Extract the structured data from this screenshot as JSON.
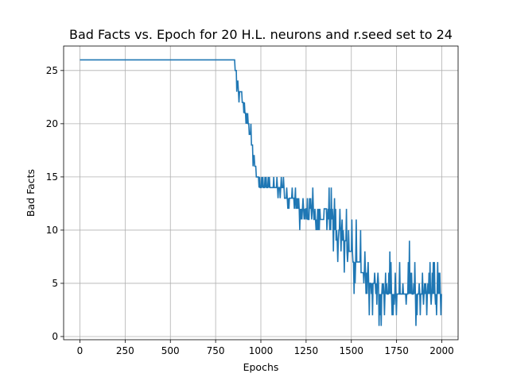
{
  "chart_data": {
    "type": "line",
    "title": "Bad Facts vs. Epoch for 20 H.L. neurons and r.seed set to 24",
    "xlabel": "Epochs",
    "ylabel": "Bad Facts",
    "xlim": [
      -90,
      2090
    ],
    "ylim": [
      -0.3,
      27.3
    ],
    "xticks": [
      0,
      250,
      500,
      750,
      1000,
      1250,
      1500,
      1750,
      2000
    ],
    "yticks": [
      0,
      5,
      10,
      15,
      20,
      25
    ],
    "grid": true,
    "line_color": "#1f77b4",
    "series": [
      {
        "x": [
          0,
          100,
          200,
          300,
          400,
          500,
          600,
          700,
          800,
          850,
          860,
          870,
          880,
          890,
          900,
          910,
          920,
          930,
          940,
          950,
          960,
          970,
          980,
          990,
          1000,
          1020,
          1040,
          1060,
          1080,
          1100,
          1120,
          1140,
          1160,
          1180,
          1200,
          1220,
          1240,
          1260,
          1280,
          1300,
          1320,
          1340,
          1360,
          1380,
          1400,
          1420,
          1440,
          1460,
          1480,
          1500,
          1520,
          1540,
          1560,
          1580,
          1600,
          1620,
          1640,
          1660,
          1680,
          1700,
          1720,
          1740,
          1760,
          1780,
          1800,
          1820,
          1840,
          1860,
          1880,
          1900,
          1920,
          1940,
          1960,
          1980,
          2000
        ],
        "y": [
          26,
          26,
          26,
          26,
          26,
          26,
          26,
          26,
          26,
          26,
          25,
          24,
          23,
          23,
          22,
          21,
          20,
          20,
          19,
          18,
          17,
          16,
          15,
          14,
          14,
          14,
          14,
          14,
          14,
          14,
          14,
          13,
          13,
          13,
          12,
          12,
          12,
          11,
          12,
          11,
          12,
          11,
          12,
          10,
          11,
          9,
          10,
          9,
          8,
          8,
          7,
          7,
          6,
          6,
          5,
          5,
          5,
          4,
          4,
          4,
          4,
          4,
          4,
          4,
          4,
          4,
          4,
          4,
          4,
          4,
          4,
          4,
          4,
          4,
          4
        ],
        "band_low": [
          26,
          26,
          26,
          26,
          26,
          26,
          26,
          26,
          26,
          26,
          24,
          23,
          22,
          22,
          21,
          20,
          19,
          19,
          18,
          17,
          16,
          15,
          14,
          14,
          14,
          14,
          14,
          13,
          13,
          13,
          13,
          12,
          12,
          12,
          11,
          10,
          10,
          10,
          10,
          9,
          9,
          9,
          9,
          8,
          7,
          7,
          7,
          6,
          6,
          4,
          4,
          4,
          3,
          3,
          2,
          2,
          1,
          1,
          1,
          1,
          1,
          1,
          1,
          1,
          1,
          1,
          1,
          1,
          1,
          2,
          2,
          2,
          2,
          2,
          2
        ],
        "band_high": [
          26,
          26,
          26,
          26,
          26,
          26,
          26,
          26,
          26,
          26,
          25,
          25,
          24,
          23,
          22,
          22,
          21,
          21,
          20,
          19,
          18,
          17,
          16,
          15,
          15,
          15,
          15,
          15,
          15,
          15,
          15,
          14,
          14,
          14,
          14,
          13,
          13,
          14,
          14,
          14,
          14,
          13,
          14,
          14,
          14,
          13,
          12,
          12,
          12,
          11,
          11,
          11,
          10,
          10,
          9,
          8,
          8,
          7,
          7,
          7,
          8,
          7,
          8,
          7,
          8,
          9,
          7,
          7,
          7,
          7,
          7,
          8,
          9,
          8,
          7
        ]
      }
    ]
  }
}
